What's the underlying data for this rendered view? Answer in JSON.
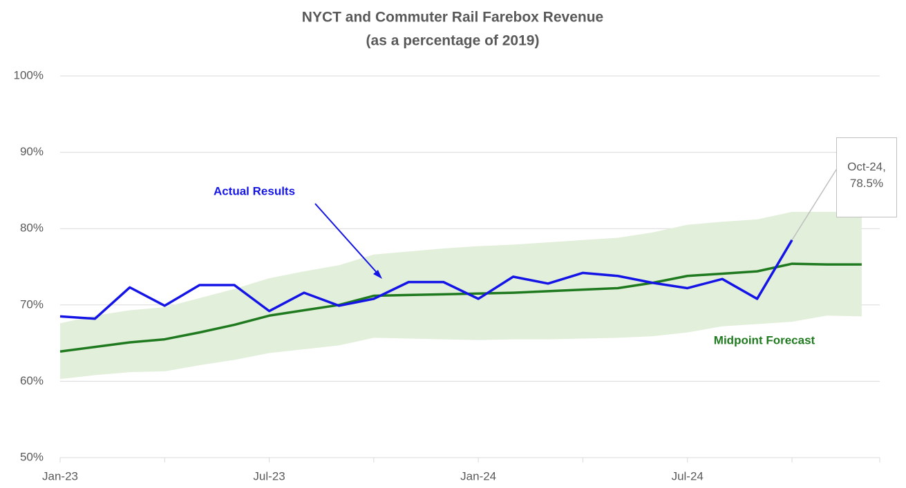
{
  "chart_data": {
    "type": "line",
    "title": "NYCT and Commuter Rail Farebox Revenue",
    "subtitle": "(as a percentage of 2019)",
    "categories": [
      "Jan-23",
      null,
      null,
      null,
      null,
      null,
      "Jul-23",
      null,
      null,
      null,
      null,
      null,
      "Jan-24",
      null,
      null,
      null,
      null,
      null,
      "Jul-24",
      null,
      null,
      null,
      null,
      null
    ],
    "ylim": [
      50,
      100
    ],
    "yticks": [
      {
        "value": 50,
        "label": "50%"
      },
      {
        "value": 60,
        "label": "60%"
      },
      {
        "value": 70,
        "label": "70%"
      },
      {
        "value": 80,
        "label": "80%"
      },
      {
        "value": 90,
        "label": "90%"
      },
      {
        "value": 100,
        "label": "100%"
      }
    ],
    "grid": true,
    "band": {
      "color": "#e2efda",
      "upper": [
        67.6,
        68.6,
        69.3,
        69.7,
        70.9,
        72.1,
        73.5,
        74.4,
        75.2,
        76.6,
        77.0,
        77.4,
        77.7,
        77.9,
        78.2,
        78.5,
        78.8,
        79.5,
        80.5,
        80.9,
        81.2,
        82.2,
        82.2,
        82.2
      ],
      "lower": [
        60.3,
        60.8,
        61.2,
        61.3,
        62.1,
        62.8,
        63.7,
        64.2,
        64.7,
        65.7,
        65.6,
        65.5,
        65.4,
        65.5,
        65.5,
        65.6,
        65.7,
        65.9,
        66.4,
        67.2,
        67.5,
        67.8,
        68.6,
        68.5
      ]
    },
    "series": [
      {
        "name": "Actual Results",
        "color": "#1414e6",
        "values": [
          68.5,
          68.2,
          72.3,
          69.9,
          72.6,
          72.6,
          69.2,
          71.6,
          69.9,
          70.8,
          73.0,
          73.0,
          70.8,
          73.7,
          72.8,
          74.2,
          73.8,
          72.9,
          72.2,
          73.4,
          70.8,
          78.5,
          null,
          null
        ],
        "value_labels": [
          null,
          null,
          null,
          null,
          null,
          null,
          null,
          null,
          null,
          null,
          null,
          null,
          null,
          null,
          null,
          null,
          null,
          null,
          null,
          null,
          null,
          "Oct-24, 78.5%",
          null,
          null
        ]
      },
      {
        "name": "Midpoint Forecast",
        "color": "#1f7a1f",
        "values": [
          63.9,
          64.5,
          65.1,
          65.5,
          66.4,
          67.4,
          68.6,
          69.3,
          70.0,
          71.2,
          71.3,
          71.4,
          71.5,
          71.6,
          71.8,
          72.0,
          72.2,
          72.9,
          73.8,
          74.1,
          74.4,
          75.4,
          75.3,
          75.3
        ]
      }
    ]
  }
}
